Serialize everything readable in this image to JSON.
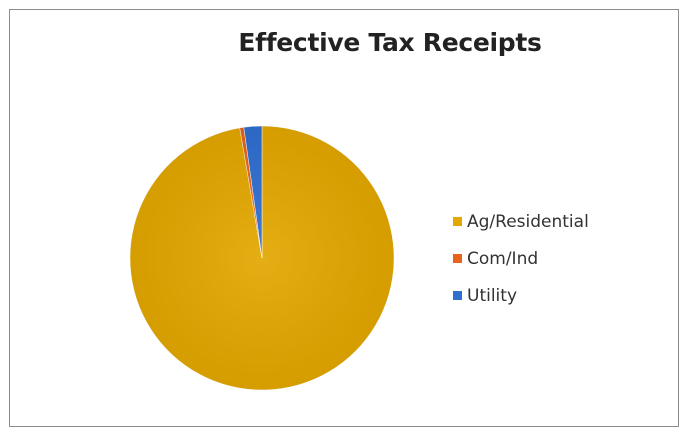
{
  "chart_data": {
    "type": "pie",
    "title": "Effective Tax Receipts",
    "categories": [
      "Ag/Residential",
      "Com/Ind",
      "Utility"
    ],
    "values": [
      97.3,
      0.5,
      2.2
    ],
    "unit": "percent",
    "start_angle_deg": 0,
    "direction": "clockwise",
    "legend_position": "right",
    "colors": [
      "#E3A700",
      "#E8641B",
      "#2F6FD0"
    ]
  }
}
